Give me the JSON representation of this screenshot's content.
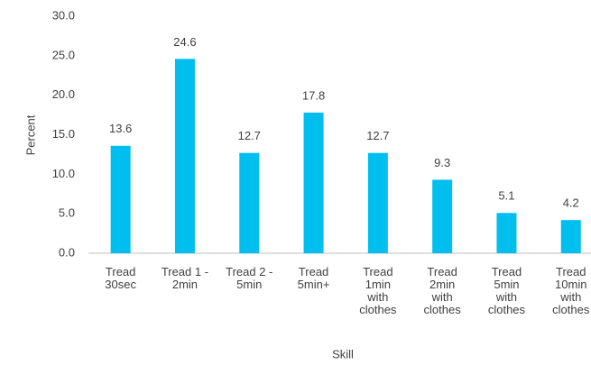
{
  "chart_data": {
    "type": "bar",
    "x_label": "Skill",
    "y_label": "Percent",
    "categories": [
      "Tread\n30sec",
      "Tread 1 -\n2min",
      "Tread 2 -\n5min",
      "Tread\n5min+",
      "Tread\n1min\nwith\nclothes",
      "Tread\n2min\nwith\nclothes",
      "Tread\n5min\nwith\nclothes",
      "Tread\n10min\nwith\nclothes"
    ],
    "values": [
      13.6,
      24.6,
      12.7,
      17.8,
      12.7,
      9.3,
      5.1,
      4.2
    ],
    "color": "#00bfef",
    "ylim": [
      0,
      30
    ],
    "yticks": [
      {
        "value": 0,
        "label": "0.0"
      },
      {
        "value": 5,
        "label": "5.0"
      },
      {
        "value": 10,
        "label": "10.0"
      },
      {
        "value": 15,
        "label": "15.0"
      },
      {
        "value": 20,
        "label": "20.0"
      },
      {
        "value": 25,
        "label": "25.0"
      },
      {
        "value": 30,
        "label": "30.0"
      }
    ],
    "grid": false
  }
}
